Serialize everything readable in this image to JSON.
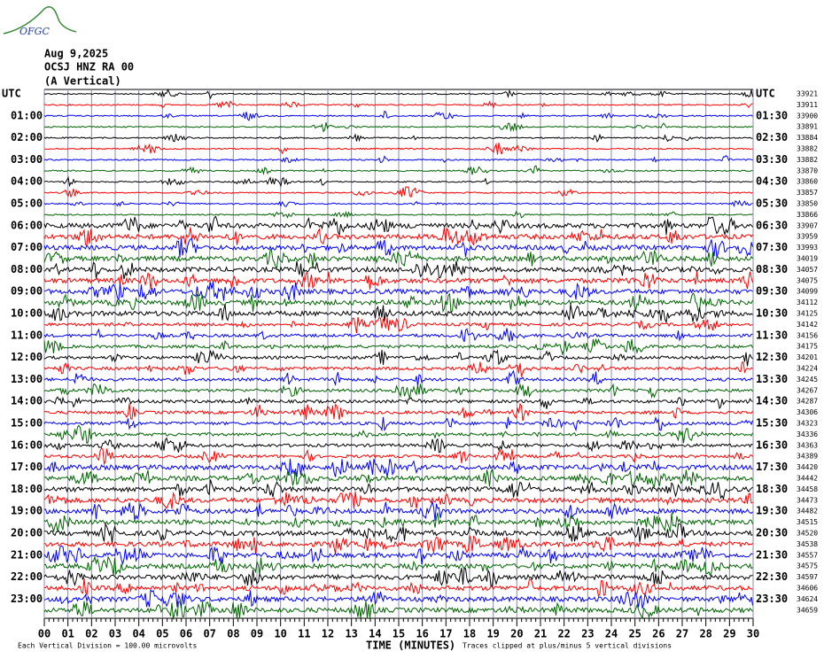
{
  "chart_data": {
    "type": "helicorder",
    "logo": "OFGC",
    "date": "Aug 9,2025",
    "station": "OCSJ HNZ RA 00",
    "component": "(A Vertical)",
    "xlabel": "TIME (MINUTES)",
    "scale_note": "Each Vertical Division =  100.00 microvolts",
    "clip_note": "Traces clipped at plus/minus 5 vertical divisions",
    "xlim": [
      0,
      30
    ],
    "xticks": [
      {
        "value": 0,
        "label": "00"
      },
      {
        "value": 1,
        "label": "01"
      },
      {
        "value": 2,
        "label": "02"
      },
      {
        "value": 3,
        "label": "03"
      },
      {
        "value": 4,
        "label": "04"
      },
      {
        "value": 5,
        "label": "05"
      },
      {
        "value": 6,
        "label": "06"
      },
      {
        "value": 7,
        "label": "07"
      },
      {
        "value": 8,
        "label": "08"
      },
      {
        "value": 9,
        "label": "09"
      },
      10,
      11,
      12,
      13,
      14,
      15,
      16,
      17,
      18,
      19,
      20,
      21,
      22,
      23,
      24,
      25,
      26,
      27,
      28,
      29,
      30
    ],
    "grid": true,
    "colors": [
      "#000000",
      "#ff0000",
      "#0000ff",
      "#006400"
    ],
    "rows_left": [
      "UTC",
      null,
      "01:00",
      null,
      "02:00",
      null,
      "03:00",
      null,
      "04:00",
      null,
      "05:00",
      null,
      "06:00",
      null,
      "07:00",
      null,
      "08:00",
      null,
      "09:00",
      null,
      "10:00",
      null,
      "11:00",
      null,
      "12:00",
      null,
      "13:00",
      null,
      "14:00",
      null,
      "15:00",
      null,
      "16:00",
      null,
      "17:00",
      null,
      "18:00",
      null,
      "19:00",
      null,
      "20:00",
      null,
      "21:00",
      null,
      "22:00",
      null,
      "23:00",
      null
    ],
    "rows_right": [
      "UTC",
      null,
      "01:30",
      null,
      "02:30",
      null,
      "03:30",
      null,
      "04:30",
      null,
      "05:30",
      null,
      "06:30",
      null,
      "07:30",
      null,
      "08:30",
      null,
      "09:30",
      null,
      "10:30",
      null,
      "11:30",
      null,
      "12:30",
      null,
      "13:30",
      null,
      "14:30",
      null,
      "15:30",
      null,
      "16:30",
      null,
      "17:30",
      null,
      "18:30",
      null,
      "19:30",
      null,
      "20:30",
      null,
      "21:30",
      null,
      "22:30",
      null,
      "23:30",
      null
    ],
    "row_counts": [
      33921,
      33911,
      33900,
      33891,
      33884,
      33882,
      33882,
      33870,
      33860,
      33857,
      33850,
      33866,
      33907,
      33959,
      33993,
      34019,
      34057,
      34075,
      34099,
      34112,
      34125,
      34142,
      34156,
      34175,
      34201,
      34224,
      34245,
      34267,
      34287,
      34306,
      34323,
      34336,
      34363,
      34389,
      34420,
      34442,
      34458,
      34473,
      34482,
      34515,
      34520,
      34538,
      34557,
      34575,
      34597,
      34606,
      34624,
      34659
    ]
  }
}
